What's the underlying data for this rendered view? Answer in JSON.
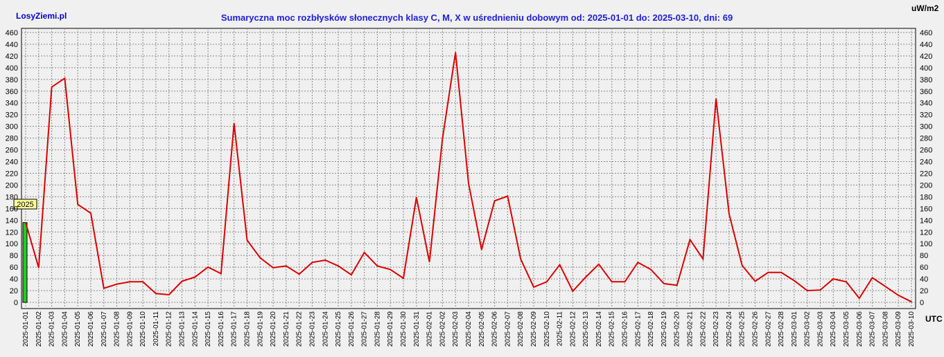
{
  "header": {
    "brand": "LosyZiemi.pl",
    "title": "Sumaryczna moc rozbłysków słonecznych klasy C, M, X w uśrednieniu dobowym od: 2025-01-01 do: 2025-03-10, dni: 69",
    "unit": "uW/m2",
    "utc": "UTC",
    "year_marker": "2025"
  },
  "colors": {
    "line": "#dd0000",
    "marker_bar": "#22cc22",
    "grid": "#888888",
    "tooltip": "#ffff99"
  },
  "chart_data": {
    "type": "line",
    "title": "Sumaryczna moc rozbłysków słonecznych klasy C, M, X w uśrednieniu dobowym od: 2025-01-01 do: 2025-03-10, dni: 69",
    "ylabel": "uW/m2",
    "xlabel": "UTC",
    "ylim": [
      0,
      460
    ],
    "yticks": [
      0,
      20,
      40,
      60,
      80,
      100,
      120,
      140,
      160,
      180,
      200,
      220,
      240,
      260,
      280,
      300,
      320,
      340,
      360,
      380,
      400,
      420,
      440,
      460
    ],
    "grid": true,
    "categories": [
      "2025-01-01",
      "2025-01-02",
      "2025-01-03",
      "2025-01-04",
      "2025-01-05",
      "2025-01-06",
      "2025-01-07",
      "2025-01-08",
      "2025-01-09",
      "2025-01-10",
      "2025-01-11",
      "2025-01-12",
      "2025-01-13",
      "2025-01-14",
      "2025-01-15",
      "2025-01-16",
      "2025-01-17",
      "2025-01-18",
      "2025-01-19",
      "2025-01-20",
      "2025-01-21",
      "2025-01-22",
      "2025-01-23",
      "2025-01-24",
      "2025-01-25",
      "2025-01-26",
      "2025-01-27",
      "2025-01-28",
      "2025-01-29",
      "2025-01-30",
      "2025-01-31",
      "2025-02-01",
      "2025-02-02",
      "2025-02-03",
      "2025-02-04",
      "2025-02-05",
      "2025-02-06",
      "2025-02-07",
      "2025-02-08",
      "2025-02-09",
      "2025-02-10",
      "2025-02-11",
      "2025-02-12",
      "2025-02-13",
      "2025-02-14",
      "2025-02-15",
      "2025-02-16",
      "2025-02-17",
      "2025-02-18",
      "2025-02-19",
      "2025-02-20",
      "2025-02-21",
      "2025-02-22",
      "2025-02-23",
      "2025-02-24",
      "2025-02-25",
      "2025-02-26",
      "2025-02-27",
      "2025-02-28",
      "2025-03-01",
      "2025-03-02",
      "2025-03-03",
      "2025-03-04",
      "2025-03-05",
      "2025-03-06",
      "2025-03-07",
      "2025-03-08",
      "2025-03-09",
      "2025-03-10"
    ],
    "values": [
      136,
      59,
      367,
      382,
      167,
      152,
      24,
      31,
      35,
      35,
      15,
      13,
      36,
      43,
      60,
      49,
      305,
      106,
      76,
      59,
      62,
      48,
      68,
      72,
      62,
      47,
      85,
      62,
      56,
      41,
      179,
      69,
      279,
      426,
      203,
      90,
      173,
      181,
      74,
      26,
      35,
      64,
      19,
      43,
      65,
      35,
      35,
      68,
      56,
      32,
      29,
      107,
      74,
      347,
      151,
      63,
      36,
      51,
      51,
      37,
      20,
      21,
      40,
      35,
      7,
      42,
      27,
      12,
      1
    ],
    "year_marker": {
      "label": "2025",
      "value": 136
    }
  }
}
